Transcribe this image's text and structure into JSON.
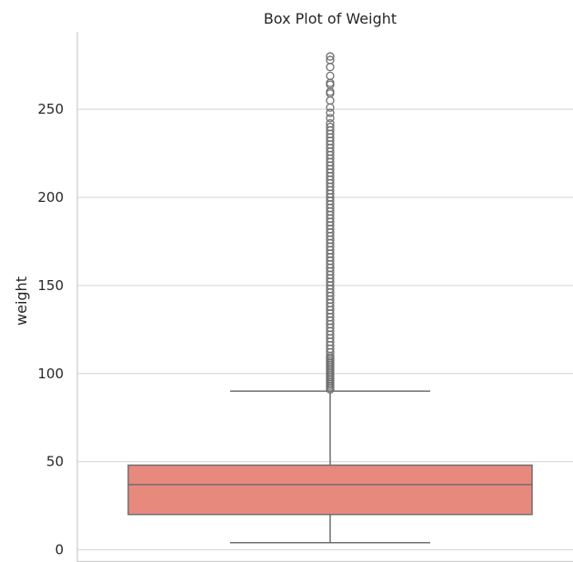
{
  "chart_data": {
    "type": "box",
    "title": "Box Plot of Weight",
    "xlabel": "",
    "ylabel": "weight",
    "ylim": [
      -3,
      293
    ],
    "yticks": [
      0,
      50,
      100,
      150,
      200,
      250
    ],
    "grid": true,
    "colors": {
      "box_fill": "#e8897e",
      "box_edge": "#6e6e6e",
      "grid": "#d9d9d9",
      "spine": "#cccccc",
      "text": "#262626"
    },
    "box": {
      "whisker_low": 4,
      "q1": 20,
      "median": 37,
      "q3": 48,
      "whisker_high": 90
    },
    "outliers": [
      91,
      92,
      93,
      94,
      95,
      96,
      97,
      98,
      99,
      100,
      101,
      102,
      103,
      104,
      105,
      106,
      107,
      108,
      109,
      110,
      112,
      114,
      116,
      118,
      120,
      122,
      124,
      126,
      128,
      130,
      132,
      134,
      136,
      138,
      140,
      142,
      144,
      146,
      148,
      150,
      152,
      154,
      156,
      158,
      160,
      162,
      164,
      166,
      168,
      170,
      172,
      174,
      176,
      178,
      180,
      182,
      184,
      186,
      188,
      190,
      192,
      194,
      196,
      198,
      200,
      202,
      204,
      206,
      208,
      210,
      212,
      214,
      216,
      218,
      220,
      222,
      224,
      226,
      228,
      230,
      232,
      234,
      236,
      238,
      240,
      242,
      245,
      248,
      251,
      255,
      259,
      260,
      264,
      265,
      269,
      274,
      278,
      280
    ]
  }
}
